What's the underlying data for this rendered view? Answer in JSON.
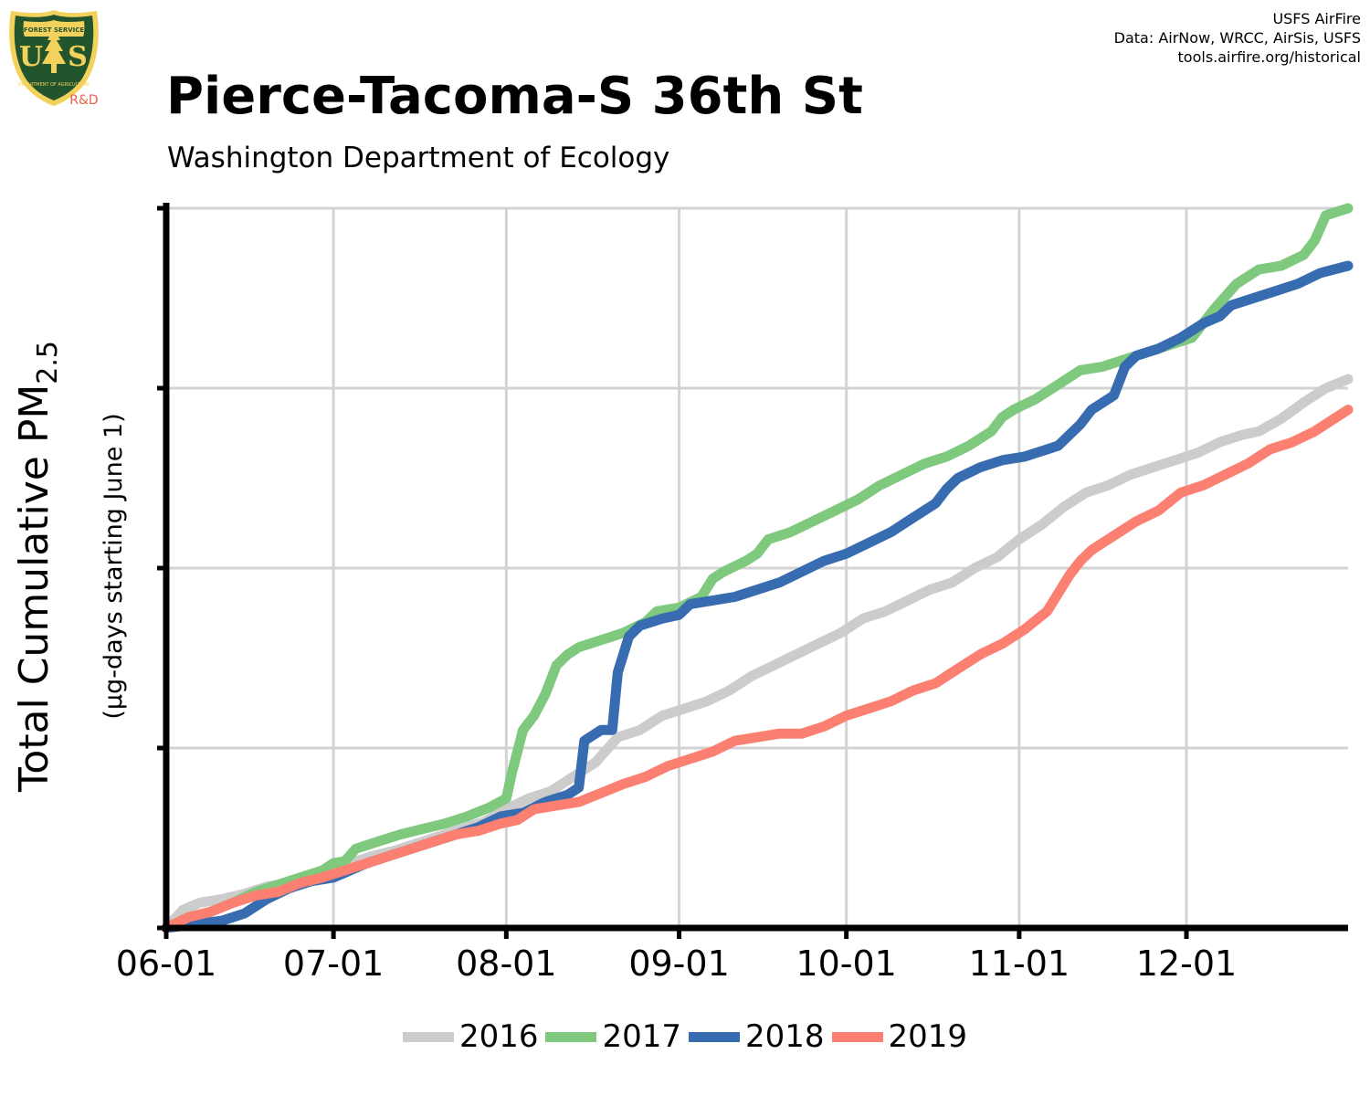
{
  "header": {
    "title": "Pierce-Tacoma-S 36th St",
    "subtitle": "Washington Department of Ecology",
    "credits": [
      "USFS AirFire",
      "Data: AirNow, WRCC, AirSis, USFS",
      "tools.airfire.org/historical"
    ],
    "logo_top_text": "FOREST SERVICE",
    "logo_letters": "US",
    "logo_bottom_text": "DEPARTMENT OF AGRICULTURE",
    "logo_tag": "R&D"
  },
  "colors": {
    "2016": "#cccccc",
    "2017": "#7fc97f",
    "2018": "#386cb0",
    "2019": "#fb8072",
    "grid": "#d3d3d3",
    "axis": "#000000",
    "logo_green": "#23552d",
    "logo_gold": "#f2d15c",
    "logo_tag": "#e8604c"
  },
  "chart_data": {
    "type": "line",
    "title": "Pierce-Tacoma-S 36th St",
    "subtitle": "Washington Department of Ecology",
    "ylabel_prefix": "Total Cumulative PM",
    "ylabel_sub": "2.5",
    "ylabel_units": "(µg-days starting June 1)",
    "xlabel": "",
    "x_tick_labels": [
      "06-01",
      "07-01",
      "08-01",
      "09-01",
      "10-01",
      "11-01",
      "12-01"
    ],
    "x_tick_days": [
      0,
      30,
      61,
      92,
      122,
      153,
      183
    ],
    "xlim_days": [
      0,
      212
    ],
    "ylim": [
      0,
      4
    ],
    "y_gridlines": [
      0,
      1,
      2,
      3,
      4
    ],
    "y_tick_labels_shown": false,
    "grid": true,
    "legend_position": "bottom",
    "series": [
      {
        "name": "2016",
        "points": [
          [
            0,
            0
          ],
          [
            3,
            0.1
          ],
          [
            6,
            0.14
          ],
          [
            10,
            0.16
          ],
          [
            14,
            0.19
          ],
          [
            18,
            0.23
          ],
          [
            22,
            0.25
          ],
          [
            26,
            0.28
          ],
          [
            30,
            0.32
          ],
          [
            33,
            0.36
          ],
          [
            37,
            0.4
          ],
          [
            41,
            0.43
          ],
          [
            45,
            0.47
          ],
          [
            49,
            0.51
          ],
          [
            53,
            0.55
          ],
          [
            57,
            0.59
          ],
          [
            61,
            0.66
          ],
          [
            65,
            0.72
          ],
          [
            69,
            0.76
          ],
          [
            73,
            0.84
          ],
          [
            77,
            0.92
          ],
          [
            81,
            1.06
          ],
          [
            85,
            1.1
          ],
          [
            89,
            1.18
          ],
          [
            93,
            1.22
          ],
          [
            97,
            1.26
          ],
          [
            101,
            1.32
          ],
          [
            105,
            1.4
          ],
          [
            109,
            1.46
          ],
          [
            113,
            1.52
          ],
          [
            117,
            1.58
          ],
          [
            121,
            1.64
          ],
          [
            125,
            1.72
          ],
          [
            129,
            1.76
          ],
          [
            133,
            1.82
          ],
          [
            137,
            1.88
          ],
          [
            141,
            1.92
          ],
          [
            145,
            2.0
          ],
          [
            149,
            2.06
          ],
          [
            153,
            2.16
          ],
          [
            157,
            2.24
          ],
          [
            161,
            2.34
          ],
          [
            165,
            2.42
          ],
          [
            169,
            2.46
          ],
          [
            173,
            2.52
          ],
          [
            177,
            2.56
          ],
          [
            181,
            2.6
          ],
          [
            185,
            2.64
          ],
          [
            189,
            2.7
          ],
          [
            193,
            2.74
          ],
          [
            196,
            2.76
          ],
          [
            200,
            2.83
          ],
          [
            204,
            2.92
          ],
          [
            208,
            3.0
          ],
          [
            212,
            3.05
          ]
        ]
      },
      {
        "name": "2017",
        "points": [
          [
            0,
            0
          ],
          [
            4,
            0.06
          ],
          [
            8,
            0.09
          ],
          [
            12,
            0.14
          ],
          [
            16,
            0.2
          ],
          [
            20,
            0.24
          ],
          [
            24,
            0.28
          ],
          [
            28,
            0.32
          ],
          [
            30,
            0.36
          ],
          [
            32,
            0.37
          ],
          [
            34,
            0.44
          ],
          [
            38,
            0.48
          ],
          [
            42,
            0.52
          ],
          [
            46,
            0.55
          ],
          [
            50,
            0.58
          ],
          [
            54,
            0.62
          ],
          [
            58,
            0.67
          ],
          [
            61,
            0.72
          ],
          [
            62,
            0.86
          ],
          [
            64,
            1.1
          ],
          [
            66,
            1.18
          ],
          [
            68,
            1.3
          ],
          [
            70,
            1.46
          ],
          [
            72,
            1.52
          ],
          [
            74,
            1.56
          ],
          [
            78,
            1.6
          ],
          [
            82,
            1.64
          ],
          [
            86,
            1.7
          ],
          [
            88,
            1.76
          ],
          [
            92,
            1.78
          ],
          [
            96,
            1.84
          ],
          [
            98,
            1.94
          ],
          [
            100,
            1.98
          ],
          [
            104,
            2.04
          ],
          [
            106,
            2.08
          ],
          [
            108,
            2.16
          ],
          [
            112,
            2.2
          ],
          [
            116,
            2.26
          ],
          [
            120,
            2.32
          ],
          [
            124,
            2.38
          ],
          [
            128,
            2.46
          ],
          [
            132,
            2.52
          ],
          [
            136,
            2.58
          ],
          [
            140,
            2.62
          ],
          [
            144,
            2.68
          ],
          [
            148,
            2.76
          ],
          [
            150,
            2.84
          ],
          [
            152,
            2.88
          ],
          [
            156,
            2.94
          ],
          [
            160,
            3.02
          ],
          [
            164,
            3.1
          ],
          [
            168,
            3.12
          ],
          [
            172,
            3.16
          ],
          [
            176,
            3.2
          ],
          [
            180,
            3.24
          ],
          [
            184,
            3.28
          ],
          [
            188,
            3.44
          ],
          [
            192,
            3.58
          ],
          [
            196,
            3.66
          ],
          [
            200,
            3.68
          ],
          [
            204,
            3.74
          ],
          [
            206,
            3.82
          ],
          [
            208,
            3.96
          ],
          [
            210,
            3.98
          ],
          [
            212,
            4.0
          ]
        ]
      },
      {
        "name": "2018",
        "points": [
          [
            0,
            0
          ],
          [
            5,
            0.02
          ],
          [
            10,
            0.04
          ],
          [
            14,
            0.08
          ],
          [
            18,
            0.16
          ],
          [
            22,
            0.22
          ],
          [
            26,
            0.26
          ],
          [
            30,
            0.28
          ],
          [
            33,
            0.32
          ],
          [
            36,
            0.36
          ],
          [
            40,
            0.4
          ],
          [
            44,
            0.44
          ],
          [
            48,
            0.48
          ],
          [
            52,
            0.52
          ],
          [
            56,
            0.56
          ],
          [
            60,
            0.62
          ],
          [
            64,
            0.64
          ],
          [
            68,
            0.7
          ],
          [
            72,
            0.74
          ],
          [
            74,
            0.78
          ],
          [
            75,
            1.04
          ],
          [
            77,
            1.08
          ],
          [
            78,
            1.1
          ],
          [
            80,
            1.1
          ],
          [
            81,
            1.42
          ],
          [
            83,
            1.62
          ],
          [
            85,
            1.68
          ],
          [
            89,
            1.72
          ],
          [
            92,
            1.74
          ],
          [
            94,
            1.8
          ],
          [
            98,
            1.82
          ],
          [
            102,
            1.84
          ],
          [
            106,
            1.88
          ],
          [
            110,
            1.92
          ],
          [
            114,
            1.98
          ],
          [
            118,
            2.04
          ],
          [
            122,
            2.08
          ],
          [
            126,
            2.14
          ],
          [
            130,
            2.2
          ],
          [
            134,
            2.28
          ],
          [
            138,
            2.36
          ],
          [
            140,
            2.44
          ],
          [
            142,
            2.5
          ],
          [
            146,
            2.56
          ],
          [
            150,
            2.6
          ],
          [
            154,
            2.62
          ],
          [
            158,
            2.66
          ],
          [
            160,
            2.68
          ],
          [
            164,
            2.8
          ],
          [
            166,
            2.88
          ],
          [
            170,
            2.96
          ],
          [
            172,
            3.12
          ],
          [
            174,
            3.18
          ],
          [
            178,
            3.22
          ],
          [
            182,
            3.28
          ],
          [
            186,
            3.36
          ],
          [
            189,
            3.4
          ],
          [
            191,
            3.46
          ],
          [
            195,
            3.5
          ],
          [
            199,
            3.54
          ],
          [
            203,
            3.58
          ],
          [
            207,
            3.64
          ],
          [
            212,
            3.68
          ]
        ]
      },
      {
        "name": "2019",
        "points": [
          [
            0,
            0
          ],
          [
            4,
            0.06
          ],
          [
            8,
            0.09
          ],
          [
            12,
            0.14
          ],
          [
            16,
            0.18
          ],
          [
            20,
            0.2
          ],
          [
            24,
            0.25
          ],
          [
            28,
            0.28
          ],
          [
            32,
            0.32
          ],
          [
            36,
            0.36
          ],
          [
            40,
            0.4
          ],
          [
            44,
            0.44
          ],
          [
            48,
            0.48
          ],
          [
            52,
            0.52
          ],
          [
            56,
            0.54
          ],
          [
            60,
            0.58
          ],
          [
            63,
            0.6
          ],
          [
            66,
            0.66
          ],
          [
            70,
            0.68
          ],
          [
            74,
            0.7
          ],
          [
            78,
            0.75
          ],
          [
            82,
            0.8
          ],
          [
            86,
            0.84
          ],
          [
            90,
            0.9
          ],
          [
            94,
            0.94
          ],
          [
            98,
            0.98
          ],
          [
            102,
            1.04
          ],
          [
            106,
            1.06
          ],
          [
            110,
            1.08
          ],
          [
            114,
            1.08
          ],
          [
            118,
            1.12
          ],
          [
            122,
            1.18
          ],
          [
            126,
            1.22
          ],
          [
            130,
            1.26
          ],
          [
            134,
            1.32
          ],
          [
            138,
            1.36
          ],
          [
            142,
            1.44
          ],
          [
            146,
            1.52
          ],
          [
            150,
            1.58
          ],
          [
            154,
            1.66
          ],
          [
            158,
            1.76
          ],
          [
            160,
            1.86
          ],
          [
            162,
            1.96
          ],
          [
            164,
            2.04
          ],
          [
            166,
            2.1
          ],
          [
            170,
            2.18
          ],
          [
            174,
            2.26
          ],
          [
            178,
            2.32
          ],
          [
            182,
            2.42
          ],
          [
            186,
            2.46
          ],
          [
            190,
            2.52
          ],
          [
            194,
            2.58
          ],
          [
            198,
            2.66
          ],
          [
            202,
            2.7
          ],
          [
            206,
            2.76
          ],
          [
            208,
            2.8
          ],
          [
            212,
            2.88
          ]
        ]
      }
    ]
  }
}
